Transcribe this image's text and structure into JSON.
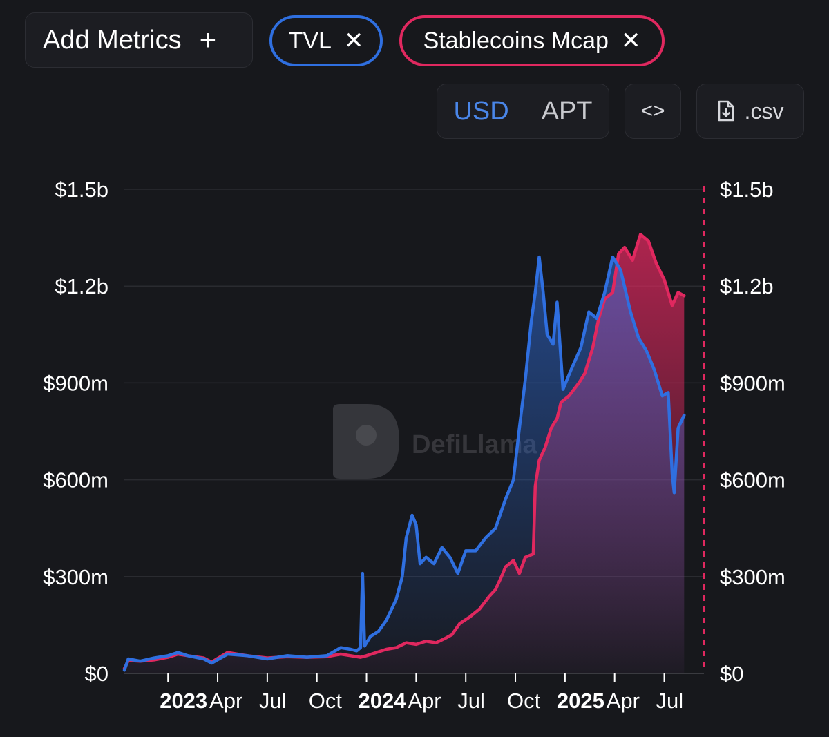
{
  "toolbar": {
    "add_metrics_label": "Add Metrics",
    "add_metrics_icon": "plus-icon",
    "chips": [
      {
        "label": "TVL",
        "color": "#2f6fe0",
        "icon": "close-icon"
      },
      {
        "label": "Stablecoins Mcap",
        "color": "#e0285f",
        "icon": "close-icon"
      }
    ],
    "currency_options": [
      "USD",
      "APT"
    ],
    "currency_selected": "USD",
    "embed_icon": "code-brackets-icon",
    "csv_label": ".csv",
    "csv_icon": "file-download-icon"
  },
  "watermark": {
    "text": "DefiLlama"
  },
  "chart_data": {
    "type": "area",
    "x_tick_labels": [
      {
        "label": "2023",
        "bold": true,
        "x": 2023.0
      },
      {
        "label": "Apr",
        "bold": false,
        "x": 2023.25
      },
      {
        "label": "Jul",
        "bold": false,
        "x": 2023.5
      },
      {
        "label": "Oct",
        "bold": false,
        "x": 2023.75
      },
      {
        "label": "2024",
        "bold": true,
        "x": 2024.0
      },
      {
        "label": "Apr",
        "bold": false,
        "x": 2024.25
      },
      {
        "label": "Jul",
        "bold": false,
        "x": 2024.5
      },
      {
        "label": "Oct",
        "bold": false,
        "x": 2024.75
      },
      {
        "label": "2025",
        "bold": true,
        "x": 2025.0
      },
      {
        "label": "Apr",
        "bold": false,
        "x": 2025.25
      },
      {
        "label": "Jul",
        "bold": false,
        "x": 2025.5
      }
    ],
    "x_range": [
      2022.78,
      2025.7
    ],
    "left_axis": {
      "ticks": [
        "$0",
        "$300m",
        "$600m",
        "$900m",
        "$1.2b",
        "$1.5b"
      ],
      "tick_values": [
        0,
        300,
        600,
        900,
        1200,
        1500
      ],
      "ylim": [
        0,
        1500
      ],
      "unit": "USD millions"
    },
    "right_axis": {
      "ticks": [
        "$0",
        "$300m",
        "$600m",
        "$900m",
        "$1.2b",
        "$1.5b"
      ],
      "tick_values": [
        0,
        300,
        600,
        900,
        1200,
        1500
      ],
      "ylim": [
        0,
        1500
      ],
      "unit": "USD millions"
    },
    "grid": true,
    "series": [
      {
        "name": "TVL",
        "color": "#2f6fe0",
        "axis": "left",
        "points": [
          [
            2022.78,
            10
          ],
          [
            2022.8,
            45
          ],
          [
            2022.86,
            38
          ],
          [
            2022.93,
            48
          ],
          [
            2023.0,
            55
          ],
          [
            2023.05,
            65
          ],
          [
            2023.1,
            55
          ],
          [
            2023.18,
            45
          ],
          [
            2023.22,
            32
          ],
          [
            2023.3,
            60
          ],
          [
            2023.4,
            55
          ],
          [
            2023.5,
            45
          ],
          [
            2023.6,
            55
          ],
          [
            2023.7,
            50
          ],
          [
            2023.8,
            55
          ],
          [
            2023.87,
            80
          ],
          [
            2023.92,
            75
          ],
          [
            2023.95,
            70
          ],
          [
            2023.97,
            80
          ],
          [
            2023.98,
            310
          ],
          [
            2023.99,
            85
          ],
          [
            2024.02,
            115
          ],
          [
            2024.06,
            130
          ],
          [
            2024.1,
            165
          ],
          [
            2024.15,
            230
          ],
          [
            2024.18,
            300
          ],
          [
            2024.2,
            420
          ],
          [
            2024.23,
            490
          ],
          [
            2024.25,
            460
          ],
          [
            2024.27,
            340
          ],
          [
            2024.3,
            360
          ],
          [
            2024.34,
            340
          ],
          [
            2024.38,
            390
          ],
          [
            2024.42,
            360
          ],
          [
            2024.46,
            310
          ],
          [
            2024.5,
            380
          ],
          [
            2024.55,
            380
          ],
          [
            2024.6,
            420
          ],
          [
            2024.65,
            450
          ],
          [
            2024.7,
            540
          ],
          [
            2024.74,
            600
          ],
          [
            2024.77,
            760
          ],
          [
            2024.8,
            910
          ],
          [
            2024.83,
            1090
          ],
          [
            2024.85,
            1180
          ],
          [
            2024.87,
            1290
          ],
          [
            2024.89,
            1180
          ],
          [
            2024.91,
            1050
          ],
          [
            2024.94,
            1020
          ],
          [
            2024.96,
            1150
          ],
          [
            2024.99,
            880
          ],
          [
            2025.03,
            940
          ],
          [
            2025.08,
            1010
          ],
          [
            2025.12,
            1120
          ],
          [
            2025.16,
            1100
          ],
          [
            2025.2,
            1180
          ],
          [
            2025.24,
            1290
          ],
          [
            2025.28,
            1250
          ],
          [
            2025.33,
            1120
          ],
          [
            2025.37,
            1040
          ],
          [
            2025.41,
            1000
          ],
          [
            2025.45,
            940
          ],
          [
            2025.49,
            860
          ],
          [
            2025.52,
            870
          ],
          [
            2025.54,
            620
          ],
          [
            2025.55,
            560
          ],
          [
            2025.57,
            760
          ],
          [
            2025.6,
            800
          ]
        ]
      },
      {
        "name": "Stablecoins Mcap",
        "color": "#e0285f",
        "axis": "right",
        "points": [
          [
            2022.78,
            15
          ],
          [
            2022.8,
            40
          ],
          [
            2022.86,
            38
          ],
          [
            2022.93,
            42
          ],
          [
            2023.0,
            50
          ],
          [
            2023.05,
            60
          ],
          [
            2023.1,
            55
          ],
          [
            2023.18,
            48
          ],
          [
            2023.22,
            35
          ],
          [
            2023.3,
            65
          ],
          [
            2023.4,
            55
          ],
          [
            2023.5,
            48
          ],
          [
            2023.6,
            52
          ],
          [
            2023.7,
            50
          ],
          [
            2023.8,
            52
          ],
          [
            2023.87,
            60
          ],
          [
            2023.92,
            55
          ],
          [
            2023.97,
            50
          ],
          [
            2024.0,
            55
          ],
          [
            2024.05,
            65
          ],
          [
            2024.1,
            75
          ],
          [
            2024.15,
            80
          ],
          [
            2024.2,
            95
          ],
          [
            2024.25,
            90
          ],
          [
            2024.3,
            100
          ],
          [
            2024.35,
            95
          ],
          [
            2024.4,
            110
          ],
          [
            2024.43,
            120
          ],
          [
            2024.47,
            155
          ],
          [
            2024.52,
            175
          ],
          [
            2024.57,
            200
          ],
          [
            2024.62,
            240
          ],
          [
            2024.65,
            260
          ],
          [
            2024.68,
            300
          ],
          [
            2024.7,
            330
          ],
          [
            2024.74,
            350
          ],
          [
            2024.77,
            310
          ],
          [
            2024.8,
            360
          ],
          [
            2024.84,
            370
          ],
          [
            2024.85,
            580
          ],
          [
            2024.87,
            660
          ],
          [
            2024.9,
            700
          ],
          [
            2024.93,
            760
          ],
          [
            2024.96,
            790
          ],
          [
            2024.98,
            840
          ],
          [
            2025.02,
            860
          ],
          [
            2025.07,
            900
          ],
          [
            2025.1,
            930
          ],
          [
            2025.14,
            1010
          ],
          [
            2025.17,
            1100
          ],
          [
            2025.2,
            1160
          ],
          [
            2025.24,
            1180
          ],
          [
            2025.27,
            1300
          ],
          [
            2025.3,
            1320
          ],
          [
            2025.34,
            1280
          ],
          [
            2025.38,
            1360
          ],
          [
            2025.42,
            1340
          ],
          [
            2025.46,
            1270
          ],
          [
            2025.5,
            1220
          ],
          [
            2025.54,
            1140
          ],
          [
            2025.57,
            1180
          ],
          [
            2025.6,
            1170
          ]
        ]
      }
    ]
  }
}
